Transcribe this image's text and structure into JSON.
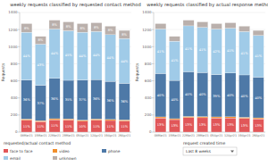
{
  "chart_data": [
    {
      "type": "bar",
      "stacked": true,
      "grid": true,
      "legend": "bottom",
      "title": "weekly requests classified by requested contact method",
      "y_label": "Requests",
      "categories": [
        "08Mar21",
        "15Mar21",
        "22Mar21",
        "29Mar21",
        "05Apr21",
        "12Apr21",
        "19Apr21",
        "26Apr21"
      ],
      "ylim": [
        0,
        1400
      ],
      "yticks": [
        0,
        200,
        400,
        600,
        800,
        1000,
        1200,
        1400
      ],
      "series": [
        {
          "name": "face to face",
          "color": "#e15759",
          "values": [
            140,
            123,
            144,
            142,
            127,
            141,
            136,
            131
          ],
          "percent_labels": [
            "11%",
            "11%",
            "11%",
            "11%",
            "10%",
            "11%",
            "11%",
            "11%"
          ]
        },
        {
          "name": "video",
          "color": "#f28e2b",
          "values": [
            13,
            11,
            13,
            13,
            13,
            13,
            12,
            12
          ]
        },
        {
          "name": "phone",
          "color": "#4e79a7",
          "values": [
            457,
            414,
            472,
            451,
            470,
            461,
            446,
            428
          ],
          "percent_labels": [
            "36%",
            "37%",
            "36%",
            "35%",
            "37%",
            "36%",
            "36%",
            "36%"
          ]
        },
        {
          "name": "email",
          "color": "#a0cbe8",
          "values": [
            559,
            481,
            577,
            581,
            559,
            563,
            546,
            524
          ],
          "percent_labels": [
            "44%",
            "43%",
            "44%",
            "45%",
            "44%",
            "44%",
            "44%",
            "44%"
          ]
        },
        {
          "name": "unknown",
          "color": "#bab0ac",
          "values": [
            101,
            91,
            104,
            103,
            101,
            102,
            100,
            95
          ],
          "percent_labels": [
            "8%",
            "8%",
            "8%",
            "8%",
            "8%",
            "8%",
            "8%",
            "8%"
          ]
        }
      ]
    },
    {
      "type": "bar",
      "stacked": true,
      "grid": true,
      "title": "weekly requests classified by actual response method",
      "y_label": "Requests",
      "categories": [
        "08Mar21",
        "15Mar21",
        "22Mar21",
        "29Mar21",
        "05Apr21",
        "12Apr21",
        "19Apr21",
        "26Apr21"
      ],
      "ylim": [
        0,
        1400
      ],
      "yticks": [
        0,
        200,
        400,
        600,
        800,
        1000,
        1200,
        1400
      ],
      "series": [
        {
          "name": "face to face",
          "color": "#e15759",
          "values": [
            165,
            146,
            170,
            168,
            165,
            166,
            161,
            155
          ],
          "percent_labels": [
            "13%",
            "13%",
            "13%",
            "13%",
            "13%",
            "13%",
            "13%",
            "13%"
          ]
        },
        {
          "name": "video",
          "color": "#f28e2b",
          "values": [
            13,
            11,
            13,
            13,
            13,
            13,
            12,
            12
          ]
        },
        {
          "name": "phone",
          "color": "#4e79a7",
          "values": [
            508,
            448,
            524,
            516,
            495,
            512,
            496,
            476
          ],
          "percent_labels": [
            "40%",
            "40%",
            "40%",
            "40%",
            "39%",
            "40%",
            "40%",
            "40%"
          ]
        },
        {
          "name": "email",
          "color": "#a0cbe8",
          "values": [
            521,
            459,
            537,
            529,
            533,
            525,
            508,
            488
          ],
          "percent_labels": [
            "41%",
            "41%",
            "41%",
            "41%",
            "42%",
            "41%",
            "41%",
            "41%"
          ]
        },
        {
          "name": "unknown",
          "color": "#bab0ac",
          "values": [
            63,
            56,
            66,
            64,
            64,
            64,
            63,
            59
          ]
        }
      ]
    }
  ],
  "controls": {
    "legend_title": "requested/actual contact method",
    "filter_label": "request created time",
    "filter_value": "Last 8 weeks"
  }
}
